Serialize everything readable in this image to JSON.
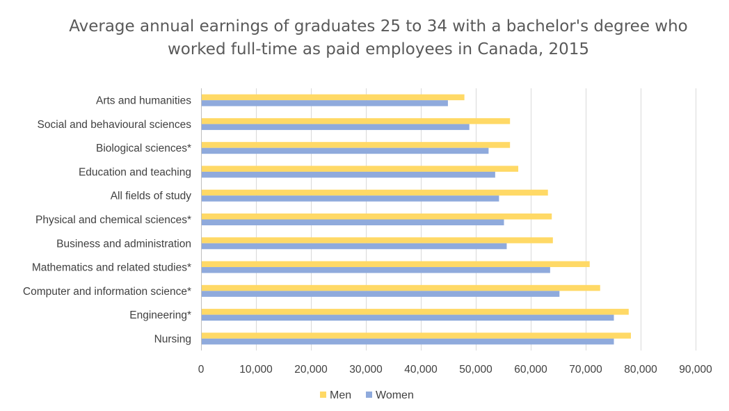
{
  "chart_data": {
    "type": "bar",
    "orientation": "horizontal",
    "title_lines": [
      "Average annual earnings of graduates 25 to 34 with a bachelor's degree who",
      "worked full-time as paid employees in Canada, 2015"
    ],
    "categories": [
      "Arts and humanities",
      "Social and behavioural sciences",
      "Biological sciences*",
      "Education and teaching",
      "All fields of study",
      "Physical and chemical sciences*",
      "Business and administration",
      "Mathematics and related studies*",
      "Computer and information science*",
      "Engineering*",
      "Nursing"
    ],
    "series": [
      {
        "name": "Men",
        "color": "#FFD966",
        "values": [
          47800,
          56100,
          56100,
          57600,
          63000,
          63700,
          63900,
          70600,
          72500,
          77700,
          78100
        ]
      },
      {
        "name": "Women",
        "color": "#8FAADC",
        "values": [
          44800,
          48700,
          52200,
          53400,
          54100,
          55000,
          55500,
          63400,
          65100,
          75000,
          75000
        ]
      }
    ],
    "xlim": [
      0,
      90000
    ],
    "xticks": [
      0,
      10000,
      20000,
      30000,
      40000,
      50000,
      60000,
      70000,
      80000,
      90000
    ],
    "xtick_labels": [
      "0",
      "10,000",
      "20,000",
      "30,000",
      "40,000",
      "50,000",
      "60,000",
      "70,000",
      "80,000",
      "90,000"
    ],
    "grid": true,
    "legend_position": "bottom"
  }
}
